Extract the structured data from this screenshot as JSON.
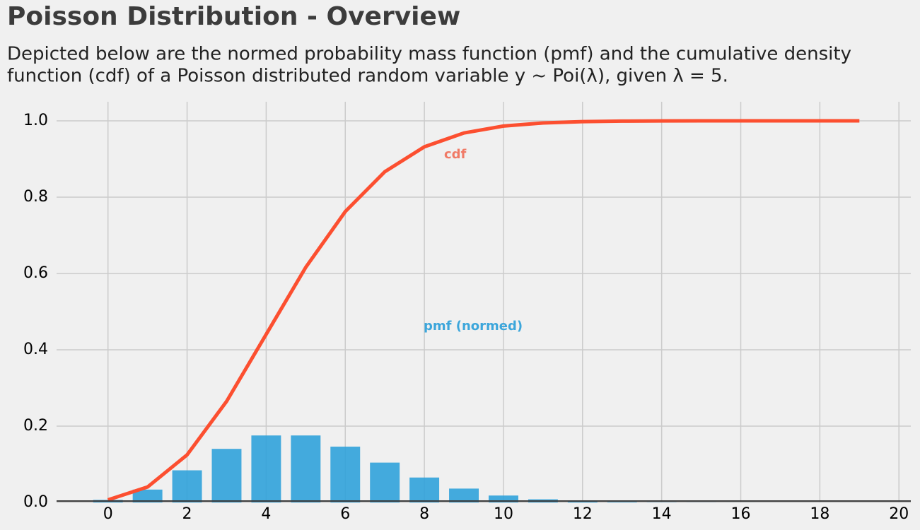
{
  "chart_data": {
    "type": "combo",
    "title": "Poisson Distribution - Overview",
    "subtitle": [
      "Depicted below are the normed probability mass function (pmf) and the cumulative density",
      "function (cdf) of a Poisson distributed random variable y ~ Poi(λ), given λ = 5."
    ],
    "x": [
      0,
      1,
      2,
      3,
      4,
      5,
      6,
      7,
      8,
      9,
      10,
      11,
      12,
      13,
      14,
      15,
      16,
      17,
      18,
      19
    ],
    "series": [
      {
        "name": "pmf (normed)",
        "type": "bar",
        "color": "#30a2da",
        "values": [
          0.0067,
          0.0337,
          0.0842,
          0.1404,
          0.1755,
          0.1755,
          0.1462,
          0.1044,
          0.0653,
          0.0363,
          0.0181,
          0.0082,
          0.0034,
          0.0013,
          0.0005,
          0.0002,
          5e-05,
          1e-05,
          0,
          0
        ]
      },
      {
        "name": "cdf",
        "type": "line",
        "color": "#fc4f30",
        "values": [
          0.0067,
          0.0404,
          0.1247,
          0.265,
          0.4405,
          0.616,
          0.7622,
          0.8666,
          0.9319,
          0.9682,
          0.9863,
          0.9945,
          0.998,
          0.9993,
          0.9998,
          0.9999,
          1,
          1,
          1,
          1
        ]
      }
    ],
    "xlim": [
      -1.3,
      20.3
    ],
    "xticks": [
      0,
      2,
      4,
      6,
      8,
      10,
      12,
      14,
      16,
      18,
      20
    ],
    "ylim": [
      0,
      1.05
    ],
    "yticks": [
      {
        "value": 0,
        "label": "0.0"
      },
      0.2,
      0.4,
      0.6,
      0.8,
      {
        "value": 1,
        "label": "1.0"
      }
    ],
    "grid": true
  }
}
